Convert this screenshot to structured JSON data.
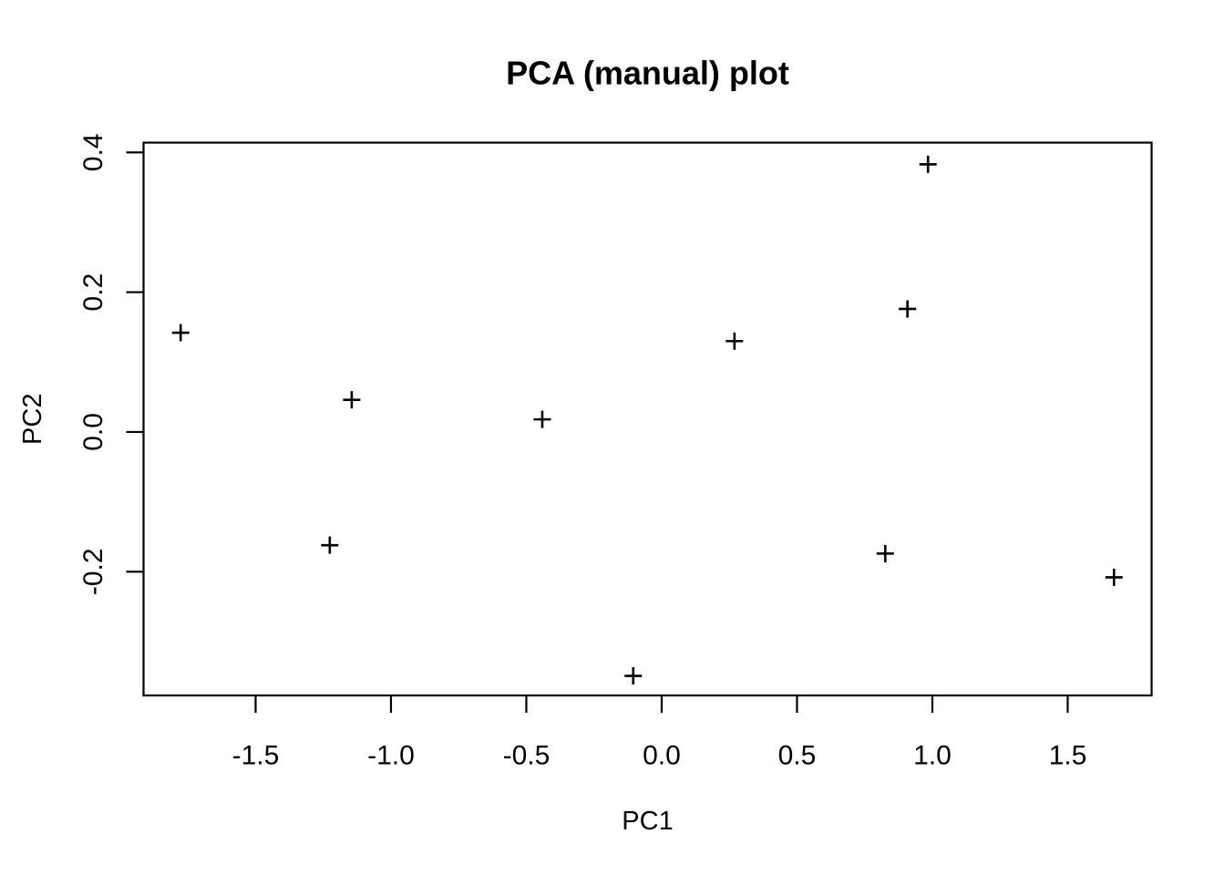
{
  "figure": {
    "background_color": "#ffffff",
    "foreground_color": "#000000"
  },
  "chart_data": {
    "type": "scatter",
    "title": "PCA (manual) plot",
    "xlabel": "PC1",
    "ylabel": "PC2",
    "marker_symbol": "plus",
    "grid": false,
    "legend": null,
    "xlim": [
      -1.914,
      1.81
    ],
    "ylim": [
      -0.377,
      0.414
    ],
    "x_ticks": [
      {
        "value": -1.5,
        "label": "-1.5"
      },
      {
        "value": -1.0,
        "label": "-1.0"
      },
      {
        "value": -0.5,
        "label": "-0.5"
      },
      {
        "value": 0.0,
        "label": "0.0"
      },
      {
        "value": 0.5,
        "label": "0.5"
      },
      {
        "value": 1.0,
        "label": "1.0"
      },
      {
        "value": 1.5,
        "label": "1.5"
      }
    ],
    "y_ticks": [
      {
        "value": -0.2,
        "label": "-0.2"
      },
      {
        "value": 0.0,
        "label": "0.0"
      },
      {
        "value": 0.2,
        "label": "0.2"
      },
      {
        "value": 0.4,
        "label": "0.4"
      }
    ],
    "points": [
      {
        "x": -1.777,
        "y": 0.142
      },
      {
        "x": -1.226,
        "y": -0.162
      },
      {
        "x": -1.145,
        "y": 0.046
      },
      {
        "x": -0.441,
        "y": 0.018
      },
      {
        "x": -0.105,
        "y": -0.349
      },
      {
        "x": 0.269,
        "y": 0.13
      },
      {
        "x": 0.826,
        "y": -0.174
      },
      {
        "x": 0.908,
        "y": 0.176
      },
      {
        "x": 0.984,
        "y": 0.383
      },
      {
        "x": 1.671,
        "y": -0.208
      }
    ]
  }
}
